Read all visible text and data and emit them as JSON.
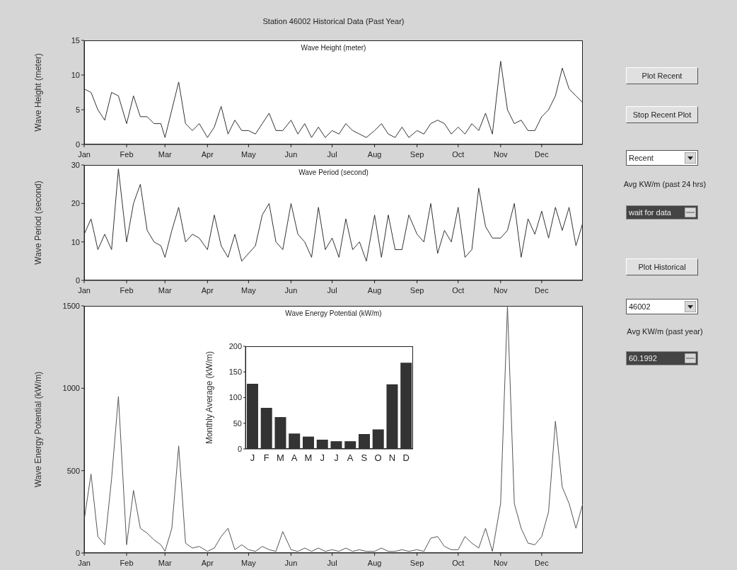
{
  "chart_data": [
    {
      "type": "line",
      "title": "Station 46002 Historical Data (Past Year)",
      "subtitle": "Wave Height (meter)",
      "ylabel": "Wave Height (meter)",
      "x": [
        "--01-01",
        "--01-06",
        "--01-11",
        "--01-16",
        "--01-21",
        "--01-26",
        "--02-01",
        "--02-06",
        "--02-11",
        "--02-16",
        "--02-21",
        "--02-26",
        "--03-01",
        "--03-06",
        "--03-11",
        "--03-16",
        "--03-21",
        "--03-26",
        "--04-01",
        "--04-06",
        "--04-11",
        "--04-16",
        "--04-21",
        "--04-26",
        "--05-01",
        "--05-06",
        "--05-11",
        "--05-16",
        "--05-21",
        "--05-26",
        "--06-01",
        "--06-06",
        "--06-11",
        "--06-16",
        "--06-21",
        "--06-26",
        "--07-01",
        "--07-06",
        "--07-11",
        "--07-16",
        "--07-21",
        "--07-26",
        "--08-01",
        "--08-06",
        "--08-11",
        "--08-16",
        "--08-21",
        "--08-26",
        "--09-01",
        "--09-06",
        "--09-11",
        "--09-16",
        "--09-21",
        "--09-26",
        "--10-01",
        "--10-06",
        "--10-11",
        "--10-16",
        "--10-21",
        "--10-26",
        "--11-01",
        "--11-06",
        "--11-11",
        "--11-16",
        "--11-21",
        "--11-26",
        "--12-01",
        "--12-06",
        "--12-11",
        "--12-16",
        "--12-21",
        "--12-26",
        "--12-31"
      ],
      "series": [
        {
          "color": "#333333",
          "values": [
            8,
            7.5,
            5,
            3.5,
            7.5,
            7,
            3,
            7,
            4,
            4,
            3,
            3,
            1,
            5,
            9,
            3,
            2,
            3,
            1,
            2.5,
            5.5,
            1.5,
            3.5,
            2,
            2,
            1.5,
            3,
            4.5,
            2,
            2,
            3.5,
            1.5,
            3,
            1,
            2.5,
            1,
            2,
            1.5,
            3,
            2,
            1.5,
            1,
            2,
            3,
            1.5,
            1,
            2.5,
            1,
            2,
            1.5,
            3,
            3.5,
            3,
            1.5,
            2.5,
            1.5,
            3,
            2,
            4.5,
            1.5,
            12,
            5,
            3,
            3.5,
            2,
            2,
            4,
            5,
            7,
            11,
            8,
            7,
            6
          ]
        }
      ],
      "xlim": [
        "--01-01",
        "--12-31"
      ],
      "xticks": [
        {
          "value": "--01-01",
          "label": "Jan"
        },
        {
          "value": "--02-01",
          "label": "Feb"
        },
        {
          "value": "--03-01",
          "label": "Mar"
        },
        {
          "value": "--04-01",
          "label": "Apr"
        },
        {
          "value": "--05-01",
          "label": "May"
        },
        {
          "value": "--06-01",
          "label": "Jun"
        },
        {
          "value": "--07-01",
          "label": "Jul"
        },
        {
          "value": "--08-01",
          "label": "Aug"
        },
        {
          "value": "--09-01",
          "label": "Sep"
        },
        {
          "value": "--10-01",
          "label": "Oct"
        },
        {
          "value": "--11-01",
          "label": "Nov"
        },
        {
          "value": "--12-01",
          "label": "Dec"
        }
      ],
      "ylim": [
        0,
        15
      ],
      "yticks": [
        0,
        5,
        10,
        15
      ]
    },
    {
      "type": "line",
      "subtitle": "Wave Period (second)",
      "ylabel": "Wave Period (second)",
      "x": [
        "--01-01",
        "--01-06",
        "--01-11",
        "--01-16",
        "--01-21",
        "--01-26",
        "--02-01",
        "--02-06",
        "--02-11",
        "--02-16",
        "--02-21",
        "--02-26",
        "--03-01",
        "--03-06",
        "--03-11",
        "--03-16",
        "--03-21",
        "--03-26",
        "--04-01",
        "--04-06",
        "--04-11",
        "--04-16",
        "--04-21",
        "--04-26",
        "--05-01",
        "--05-06",
        "--05-11",
        "--05-16",
        "--05-21",
        "--05-26",
        "--06-01",
        "--06-06",
        "--06-11",
        "--06-16",
        "--06-21",
        "--06-26",
        "--07-01",
        "--07-06",
        "--07-11",
        "--07-16",
        "--07-21",
        "--07-26",
        "--08-01",
        "--08-06",
        "--08-11",
        "--08-16",
        "--08-21",
        "--08-26",
        "--09-01",
        "--09-06",
        "--09-11",
        "--09-16",
        "--09-21",
        "--09-26",
        "--10-01",
        "--10-06",
        "--10-11",
        "--10-16",
        "--10-21",
        "--10-26",
        "--11-01",
        "--11-06",
        "--11-11",
        "--11-16",
        "--11-21",
        "--11-26",
        "--12-01",
        "--12-06",
        "--12-11",
        "--12-16",
        "--12-21",
        "--12-26",
        "--12-31"
      ],
      "series": [
        {
          "color": "#333333",
          "values": [
            12,
            16,
            8,
            12,
            8,
            29,
            10,
            20,
            25,
            13,
            10,
            9,
            6,
            13,
            19,
            10,
            12,
            11,
            8,
            17,
            9,
            6,
            12,
            5,
            7,
            9,
            17,
            20,
            10,
            8,
            20,
            12,
            10,
            6,
            19,
            8,
            11,
            6,
            16,
            8,
            10,
            5,
            17,
            6,
            17,
            8,
            8,
            17,
            12,
            10,
            20,
            7,
            13,
            10,
            19,
            6,
            8,
            24,
            14,
            11,
            11,
            13,
            20,
            6,
            16,
            12,
            18,
            11,
            19,
            13,
            19,
            9,
            15
          ]
        }
      ],
      "xlim": [
        "--01-01",
        "--12-31"
      ],
      "xticks": [
        {
          "value": "--01-01",
          "label": "Jan"
        },
        {
          "value": "--02-01",
          "label": "Feb"
        },
        {
          "value": "--03-01",
          "label": "Mar"
        },
        {
          "value": "--04-01",
          "label": "Apr"
        },
        {
          "value": "--05-01",
          "label": "May"
        },
        {
          "value": "--06-01",
          "label": "Jun"
        },
        {
          "value": "--07-01",
          "label": "Jul"
        },
        {
          "value": "--08-01",
          "label": "Aug"
        },
        {
          "value": "--09-01",
          "label": "Sep"
        },
        {
          "value": "--10-01",
          "label": "Oct"
        },
        {
          "value": "--11-01",
          "label": "Nov"
        },
        {
          "value": "--12-01",
          "label": "Dec"
        }
      ],
      "ylim": [
        0,
        30
      ],
      "yticks": [
        0,
        10,
        20,
        30
      ]
    },
    {
      "type": "line",
      "subtitle": "Wave Energy Potential (kW/m)",
      "ylabel": "Wave Energy Potential (kW/m)",
      "x": [
        "--01-01",
        "--01-06",
        "--01-11",
        "--01-16",
        "--01-21",
        "--01-26",
        "--02-01",
        "--02-06",
        "--02-11",
        "--02-16",
        "--02-21",
        "--02-26",
        "--03-01",
        "--03-06",
        "--03-11",
        "--03-16",
        "--03-21",
        "--03-26",
        "--04-01",
        "--04-06",
        "--04-11",
        "--04-16",
        "--04-21",
        "--04-26",
        "--05-01",
        "--05-06",
        "--05-11",
        "--05-16",
        "--05-21",
        "--05-26",
        "--06-01",
        "--06-06",
        "--06-11",
        "--06-16",
        "--06-21",
        "--06-26",
        "--07-01",
        "--07-06",
        "--07-11",
        "--07-16",
        "--07-21",
        "--07-26",
        "--08-01",
        "--08-06",
        "--08-11",
        "--08-16",
        "--08-21",
        "--08-26",
        "--09-01",
        "--09-06",
        "--09-11",
        "--09-16",
        "--09-21",
        "--09-26",
        "--10-01",
        "--10-06",
        "--10-11",
        "--10-16",
        "--10-21",
        "--10-26",
        "--11-01",
        "--11-06",
        "--11-11",
        "--11-16",
        "--11-21",
        "--11-26",
        "--12-01",
        "--12-06",
        "--12-11",
        "--12-16",
        "--12-21",
        "--12-26",
        "--12-31"
      ],
      "series": [
        {
          "color": "#555555",
          "values": [
            200,
            480,
            100,
            50,
            450,
            950,
            50,
            380,
            150,
            120,
            80,
            50,
            10,
            150,
            650,
            60,
            30,
            40,
            10,
            30,
            100,
            150,
            20,
            50,
            20,
            10,
            40,
            20,
            10,
            130,
            20,
            10,
            30,
            10,
            30,
            10,
            20,
            10,
            30,
            10,
            20,
            10,
            10,
            30,
            10,
            10,
            20,
            10,
            20,
            10,
            90,
            100,
            40,
            20,
            20,
            100,
            60,
            30,
            150,
            10,
            300,
            1500,
            300,
            150,
            60,
            50,
            100,
            250,
            800,
            400,
            300,
            150,
            300
          ]
        }
      ],
      "xlim": [
        "--01-01",
        "--12-31"
      ],
      "xticks": [
        {
          "value": "--01-01",
          "label": "Jan"
        },
        {
          "value": "--02-01",
          "label": "Feb"
        },
        {
          "value": "--03-01",
          "label": "Mar"
        },
        {
          "value": "--04-01",
          "label": "Apr"
        },
        {
          "value": "--05-01",
          "label": "May"
        },
        {
          "value": "--06-01",
          "label": "Jun"
        },
        {
          "value": "--07-01",
          "label": "Jul"
        },
        {
          "value": "--08-01",
          "label": "Aug"
        },
        {
          "value": "--09-01",
          "label": "Sep"
        },
        {
          "value": "--10-01",
          "label": "Oct"
        },
        {
          "value": "--11-01",
          "label": "Nov"
        },
        {
          "value": "--12-01",
          "label": "Dec"
        }
      ],
      "ylim": [
        0,
        1500
      ],
      "yticks": [
        0,
        500,
        1000,
        1500
      ]
    },
    {
      "type": "bar",
      "ylabel": "Monthly Average (kW/m)",
      "categories": [
        "J",
        "F",
        "M",
        "A",
        "M",
        "J",
        "J",
        "A",
        "S",
        "O",
        "N",
        "D"
      ],
      "values": [
        127,
        80,
        62,
        30,
        24,
        18,
        15,
        15,
        29,
        38,
        126,
        168
      ],
      "color": "#333333",
      "ylim": [
        0,
        200
      ],
      "yticks": [
        0,
        50,
        100,
        150,
        200
      ]
    },
    {
      "type": "other",
      "annotations": [
        "Plot Recent",
        "Stop Recent Plot",
        "Recent",
        "Avg KW/m (past 24 hrs)",
        "wait for data",
        "Plot Historical",
        "46002",
        "Avg KW/m (past year)",
        "60.1992"
      ]
    }
  ]
}
